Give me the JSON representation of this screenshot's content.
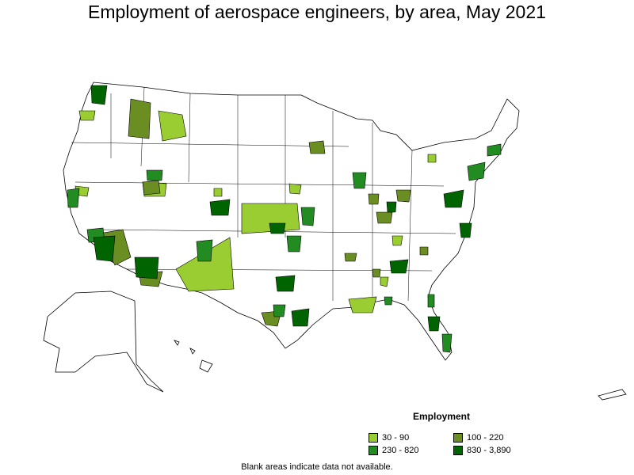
{
  "title": "Employment of aerospace engineers, by area, May 2021",
  "legend": {
    "title": "Employment",
    "items": [
      {
        "label": "30 - 90",
        "color": "#9acd32"
      },
      {
        "label": "100 - 220",
        "color": "#6b8e23"
      },
      {
        "label": "230 - 820",
        "color": "#228b22"
      },
      {
        "label": "830 - 3,890",
        "color": "#006400"
      }
    ]
  },
  "footnote": "Blank areas indicate data not available."
}
